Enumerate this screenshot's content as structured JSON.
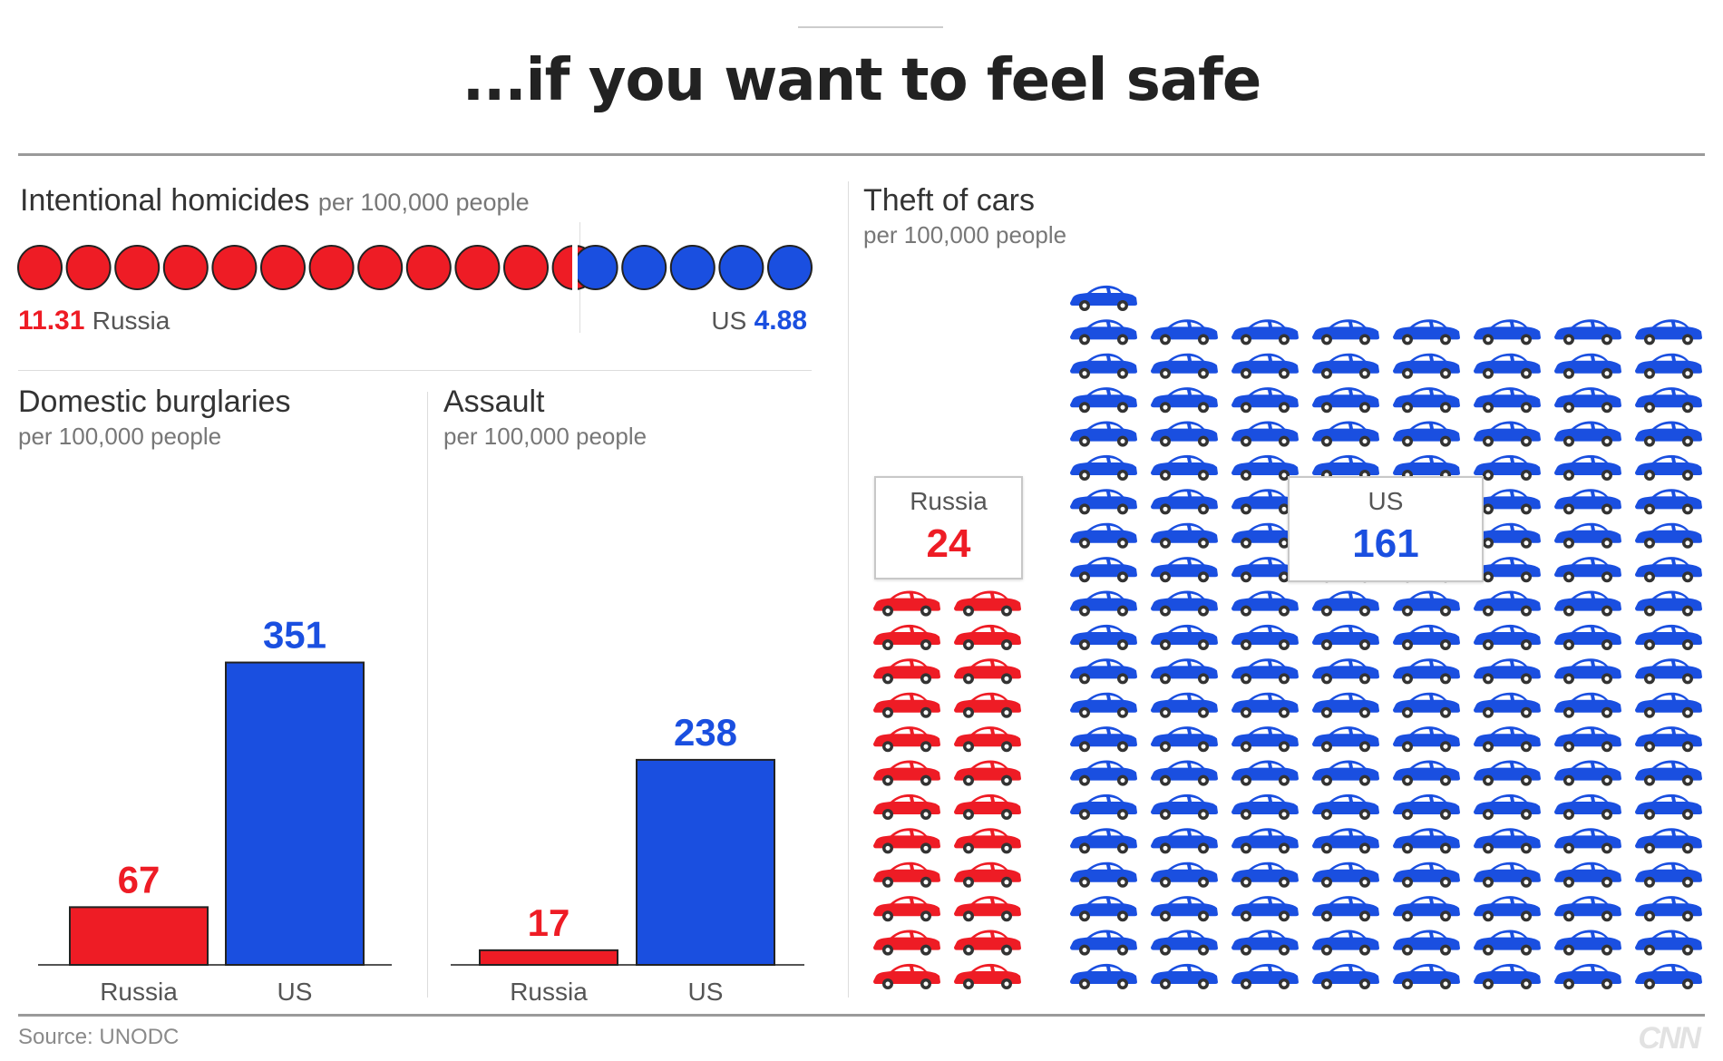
{
  "header": {
    "title": "...if you want to feel safe"
  },
  "footer": {
    "source": "Source: UNODC",
    "logo": "CNN"
  },
  "colors": {
    "russia": "#ee1c25",
    "us": "#1a4fe0"
  },
  "chart_data": [
    {
      "type": "dot-comparison",
      "title": "Intentional homicides",
      "subtitle": "per 100,000 people",
      "series": [
        {
          "name": "Russia",
          "value": 11.31,
          "value_label": "11.31",
          "color": "#ee1c25"
        },
        {
          "name": "US",
          "value": 4.88,
          "value_label": "4.88",
          "color": "#1a4fe0"
        }
      ]
    },
    {
      "type": "bar",
      "title": "Domestic burglaries",
      "subtitle": "per 100,000 people",
      "categories": [
        "Russia",
        "US"
      ],
      "values": [
        67,
        351
      ],
      "colors": [
        "#ee1c25",
        "#1a4fe0"
      ],
      "ylim": [
        0,
        400
      ]
    },
    {
      "type": "bar",
      "title": "Assault",
      "subtitle": "per 100,000 people",
      "categories": [
        "Russia",
        "US"
      ],
      "values": [
        17,
        238
      ],
      "colors": [
        "#ee1c25",
        "#1a4fe0"
      ],
      "ylim": [
        0,
        400
      ]
    },
    {
      "type": "pictogram",
      "title": "Theft of cars",
      "subtitle": "per 100,000 people",
      "icon": "car-icon",
      "series": [
        {
          "name": "Russia",
          "value": 24,
          "value_label": "24",
          "color": "#ee1c25"
        },
        {
          "name": "US",
          "value": 161,
          "value_label": "161",
          "color": "#1a4fe0"
        }
      ]
    }
  ]
}
